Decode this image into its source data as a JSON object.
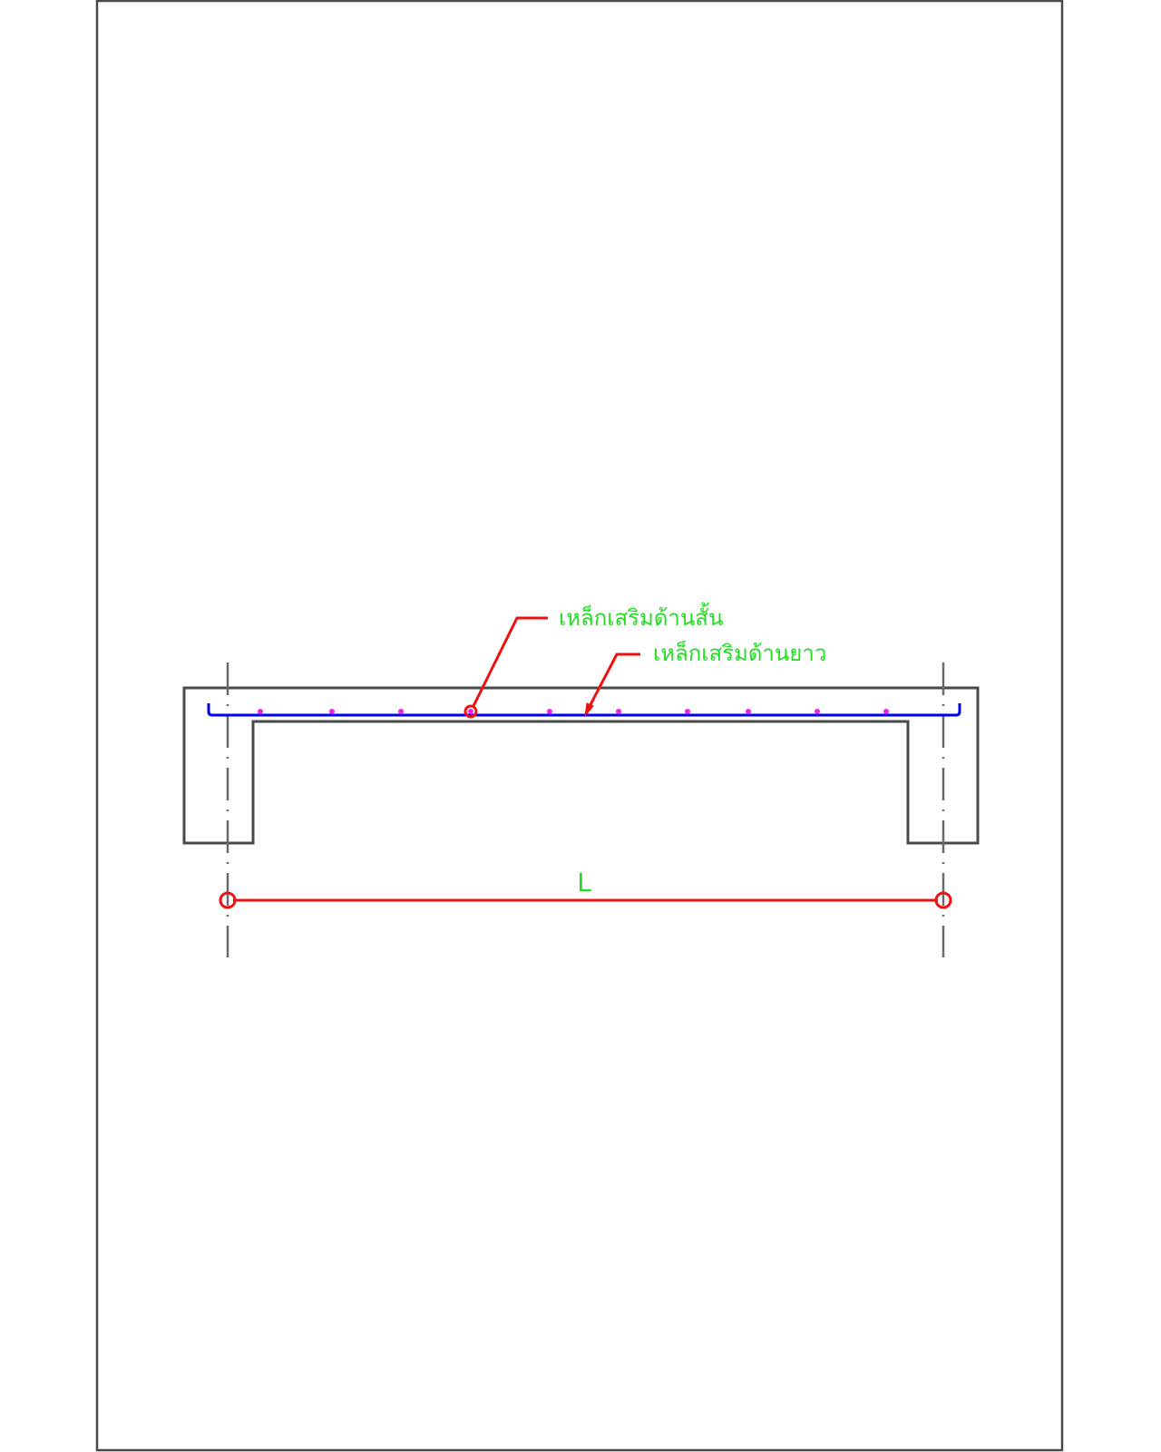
{
  "drawing": {
    "labels": {
      "short_span_rebar": "เหล็กเสริมด้านสั้น",
      "long_span_rebar": "เหล็กเสริมด้านยาว",
      "span_length": "L"
    },
    "colors": {
      "concrete_outline": "#4a4a4a",
      "rebar_main": "#0000ee",
      "rebar_dots": "#ee22ee",
      "leader_lines": "#ee1111",
      "text": "#22dd22",
      "centerlines": "#6a6a6a"
    }
  }
}
